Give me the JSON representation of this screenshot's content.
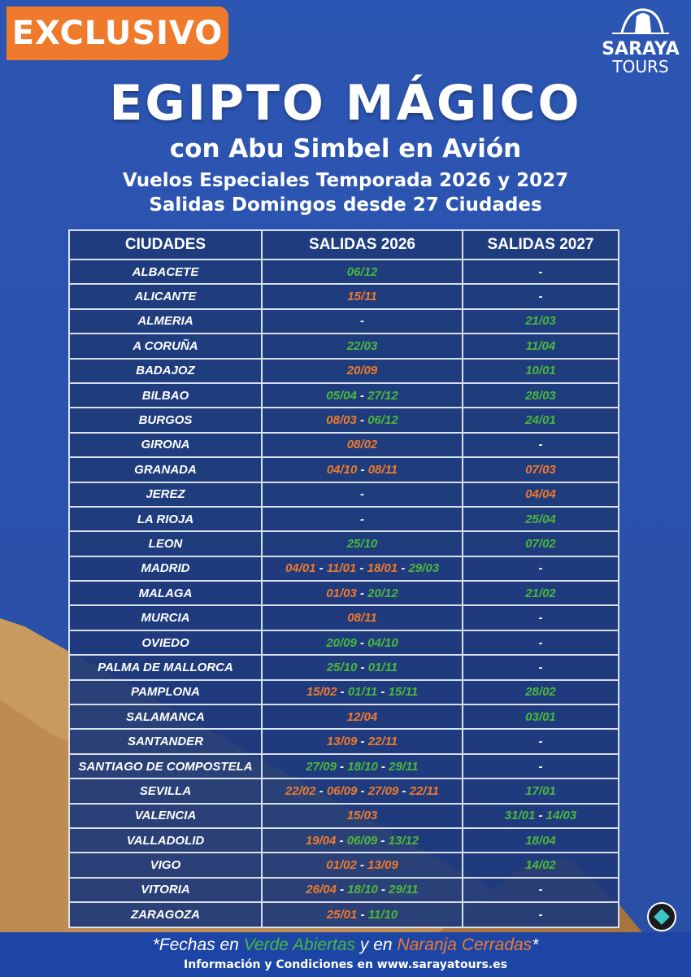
{
  "badge": "EXCLUSIVO",
  "logo": {
    "line1": "SARAYA",
    "line2": "TOURS"
  },
  "title": "EGIPTO MÁGICO",
  "subtitle": "con Abu Simbel en Avión",
  "lines": [
    "Vuelos Especiales Temporada 2026 y 2027",
    "Salidas Domingos desde 27 Ciudades"
  ],
  "colors": {
    "open": "#4cb83a",
    "closed": "#f07a2b",
    "accent": "#f07a2b",
    "background": "#2a50aa"
  },
  "table": {
    "headers": [
      "CIUDADES",
      "SALIDAS 2026",
      "SALIDAS 2027"
    ],
    "rows": [
      {
        "city": "ALBACETE",
        "s2026": [
          {
            "t": "06/12",
            "c": "g"
          }
        ],
        "s2027": [
          {
            "t": "-",
            "c": "w"
          }
        ]
      },
      {
        "city": "ALICANTE",
        "s2026": [
          {
            "t": "15/11",
            "c": "o"
          }
        ],
        "s2027": [
          {
            "t": "-",
            "c": "w"
          }
        ]
      },
      {
        "city": "ALMERIA",
        "s2026": [
          {
            "t": "-",
            "c": "w"
          }
        ],
        "s2027": [
          {
            "t": "21/03",
            "c": "g"
          }
        ]
      },
      {
        "city": "A CORUÑA",
        "s2026": [
          {
            "t": "22/03",
            "c": "g"
          }
        ],
        "s2027": [
          {
            "t": "11/04",
            "c": "g"
          }
        ]
      },
      {
        "city": "BADAJOZ",
        "s2026": [
          {
            "t": "20/09",
            "c": "o"
          }
        ],
        "s2027": [
          {
            "t": "10/01",
            "c": "g"
          }
        ]
      },
      {
        "city": "BILBAO",
        "s2026": [
          {
            "t": "05/04",
            "c": "g"
          },
          {
            "t": "27/12",
            "c": "g"
          }
        ],
        "s2027": [
          {
            "t": "28/03",
            "c": "g"
          }
        ]
      },
      {
        "city": "BURGOS",
        "s2026": [
          {
            "t": "08/03",
            "c": "o"
          },
          {
            "t": "06/12",
            "c": "g"
          }
        ],
        "s2027": [
          {
            "t": "24/01",
            "c": "g"
          }
        ]
      },
      {
        "city": "GIRONA",
        "s2026": [
          {
            "t": "08/02",
            "c": "o"
          }
        ],
        "s2027": [
          {
            "t": "-",
            "c": "w"
          }
        ]
      },
      {
        "city": "GRANADA",
        "s2026": [
          {
            "t": "04/10",
            "c": "o"
          },
          {
            "t": "08/11",
            "c": "o"
          }
        ],
        "s2027": [
          {
            "t": "07/03",
            "c": "o"
          }
        ]
      },
      {
        "city": "JEREZ",
        "s2026": [
          {
            "t": "-",
            "c": "w"
          }
        ],
        "s2027": [
          {
            "t": "04/04",
            "c": "o"
          }
        ]
      },
      {
        "city": "LA RIOJA",
        "s2026": [
          {
            "t": "-",
            "c": "w"
          }
        ],
        "s2027": [
          {
            "t": "25/04",
            "c": "g"
          }
        ]
      },
      {
        "city": "LEON",
        "s2026": [
          {
            "t": "25/10",
            "c": "g"
          }
        ],
        "s2027": [
          {
            "t": "07/02",
            "c": "g"
          }
        ]
      },
      {
        "city": "MADRID",
        "s2026": [
          {
            "t": "04/01",
            "c": "o"
          },
          {
            "t": "11/01",
            "c": "o"
          },
          {
            "t": "18/01",
            "c": "o"
          },
          {
            "t": "29/03",
            "c": "g"
          }
        ],
        "s2027": [
          {
            "t": "-",
            "c": "w"
          }
        ]
      },
      {
        "city": "MALAGA",
        "s2026": [
          {
            "t": "01/03",
            "c": "o"
          },
          {
            "t": "20/12",
            "c": "g"
          }
        ],
        "s2027": [
          {
            "t": "21/02",
            "c": "g"
          }
        ]
      },
      {
        "city": "MURCIA",
        "s2026": [
          {
            "t": "08/11",
            "c": "o"
          }
        ],
        "s2027": [
          {
            "t": "-",
            "c": "w"
          }
        ]
      },
      {
        "city": "OVIEDO",
        "s2026": [
          {
            "t": "20/09",
            "c": "g"
          },
          {
            "t": "04/10",
            "c": "g"
          }
        ],
        "s2027": [
          {
            "t": "-",
            "c": "w"
          }
        ]
      },
      {
        "city": "PALMA DE  MALLORCA",
        "s2026": [
          {
            "t": "25/10",
            "c": "g"
          },
          {
            "t": "01/11",
            "c": "g"
          }
        ],
        "s2027": [
          {
            "t": "-",
            "c": "w"
          }
        ]
      },
      {
        "city": "PAMPLONA",
        "s2026": [
          {
            "t": "15/02",
            "c": "o"
          },
          {
            "t": "01/11",
            "c": "g"
          },
          {
            "t": "15/11",
            "c": "g"
          }
        ],
        "s2027": [
          {
            "t": "28/02",
            "c": "g"
          }
        ]
      },
      {
        "city": "SALAMANCA",
        "s2026": [
          {
            "t": "12/04",
            "c": "o"
          }
        ],
        "s2027": [
          {
            "t": "03/01",
            "c": "g"
          }
        ]
      },
      {
        "city": "SANTANDER",
        "s2026": [
          {
            "t": "13/09",
            "c": "o"
          },
          {
            "t": "22/11",
            "c": "o"
          }
        ],
        "s2027": [
          {
            "t": "-",
            "c": "w"
          }
        ]
      },
      {
        "city": "SANTIAGO DE COMPOSTELA",
        "s2026": [
          {
            "t": "27/09",
            "c": "g"
          },
          {
            "t": "18/10",
            "c": "g"
          },
          {
            "t": "29/11",
            "c": "g"
          }
        ],
        "s2027": [
          {
            "t": "-",
            "c": "w"
          }
        ]
      },
      {
        "city": "SEVILLA",
        "s2026": [
          {
            "t": "22/02",
            "c": "o"
          },
          {
            "t": "06/09",
            "c": "o"
          },
          {
            "t": "27/09",
            "c": "o"
          },
          {
            "t": "22/11",
            "c": "o"
          }
        ],
        "s2027": [
          {
            "t": "17/01",
            "c": "g"
          }
        ]
      },
      {
        "city": "VALENCIA",
        "s2026": [
          {
            "t": "15/03",
            "c": "o"
          }
        ],
        "s2027": [
          {
            "t": "31/01",
            "c": "g"
          },
          {
            "t": "14/03",
            "c": "g"
          }
        ]
      },
      {
        "city": "VALLADOLID",
        "s2026": [
          {
            "t": "19/04",
            "c": "o"
          },
          {
            "t": "06/09",
            "c": "g"
          },
          {
            "t": "13/12",
            "c": "g"
          }
        ],
        "s2027": [
          {
            "t": "18/04",
            "c": "g"
          }
        ]
      },
      {
        "city": "VIGO",
        "s2026": [
          {
            "t": "01/02",
            "c": "o"
          },
          {
            "t": "13/09",
            "c": "o"
          }
        ],
        "s2027": [
          {
            "t": "14/02",
            "c": "g"
          }
        ]
      },
      {
        "city": "VITORIA",
        "s2026": [
          {
            "t": "26/04",
            "c": "o"
          },
          {
            "t": "18/10",
            "c": "g"
          },
          {
            "t": "29/11",
            "c": "g"
          }
        ],
        "s2027": [
          {
            "t": "-",
            "c": "w"
          }
        ]
      },
      {
        "city": "ZARAGOZA",
        "s2026": [
          {
            "t": "25/01",
            "c": "o"
          },
          {
            "t": "11/10",
            "c": "g"
          }
        ],
        "s2027": [
          {
            "t": "-",
            "c": "w"
          }
        ]
      }
    ]
  },
  "footer": {
    "legend": {
      "p1": "*Fechas en ",
      "p2": "Verde Abiertas",
      "p3": " y en ",
      "p4": "Naranja Cerradas",
      "p5": "*"
    },
    "info": "Información y Condiciones en www.sarayatours.es"
  }
}
